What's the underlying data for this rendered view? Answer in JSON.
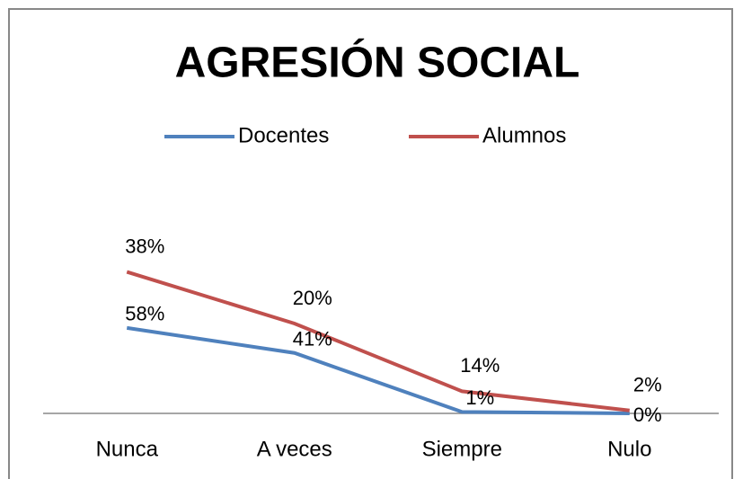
{
  "chart_data": {
    "type": "line",
    "stacked": true,
    "title": "AGRESIÓN SOCIAL",
    "categories": [
      "Nunca",
      "A veces",
      "Siempre",
      "Nulo"
    ],
    "series": [
      {
        "name": "Docentes",
        "color": "#4f81bd",
        "values": [
          58,
          41,
          1,
          0
        ],
        "value_labels": [
          "58%",
          "41%",
          "1%",
          "0%"
        ]
      },
      {
        "name": "Alumnos",
        "color": "#c0504d",
        "values": [
          38,
          20,
          14,
          2
        ],
        "value_labels": [
          "38%",
          "20%",
          "14%",
          "2%"
        ]
      }
    ],
    "ylim": [
      0,
      100
    ],
    "legend": "top"
  }
}
